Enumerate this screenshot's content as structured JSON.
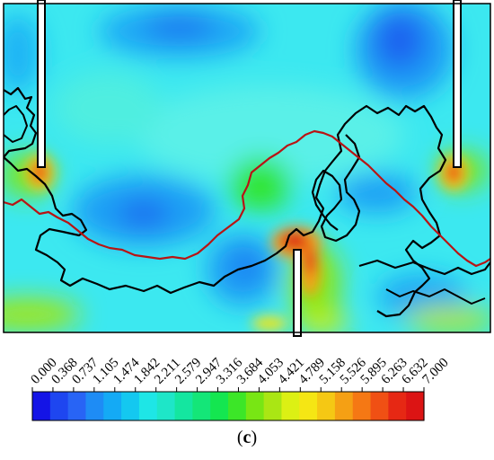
{
  "figure": {
    "caption_open": "(",
    "caption_letter": "c",
    "caption_close": ")"
  },
  "colorbar": {
    "min": 0.0,
    "max": 7.0,
    "ticks": [
      "0.000",
      "0.368",
      "0.737",
      "1.105",
      "1.474",
      "1.842",
      "2.211",
      "2.579",
      "2.947",
      "3.316",
      "3.684",
      "4.053",
      "4.421",
      "4.789",
      "5.158",
      "5.526",
      "5.895",
      "6.263",
      "6.632",
      "7.000"
    ],
    "colors": [
      "#1414e6",
      "#1e46f0",
      "#2864f5",
      "#1e8cf5",
      "#14aaf5",
      "#14c8f0",
      "#1ee6e6",
      "#1ee6c8",
      "#14e6a0",
      "#14e678",
      "#14e650",
      "#3ce628",
      "#78e614",
      "#aae614",
      "#dcf014",
      "#f5e614",
      "#f5c814",
      "#f5a014",
      "#f57814",
      "#f05014",
      "#e62814",
      "#dc1414"
    ]
  },
  "colors": {
    "field_base": "#3ce8f0",
    "boundary": "#000000",
    "trajectory_dark": "#000000",
    "trajectory_red": "#b81414"
  }
}
